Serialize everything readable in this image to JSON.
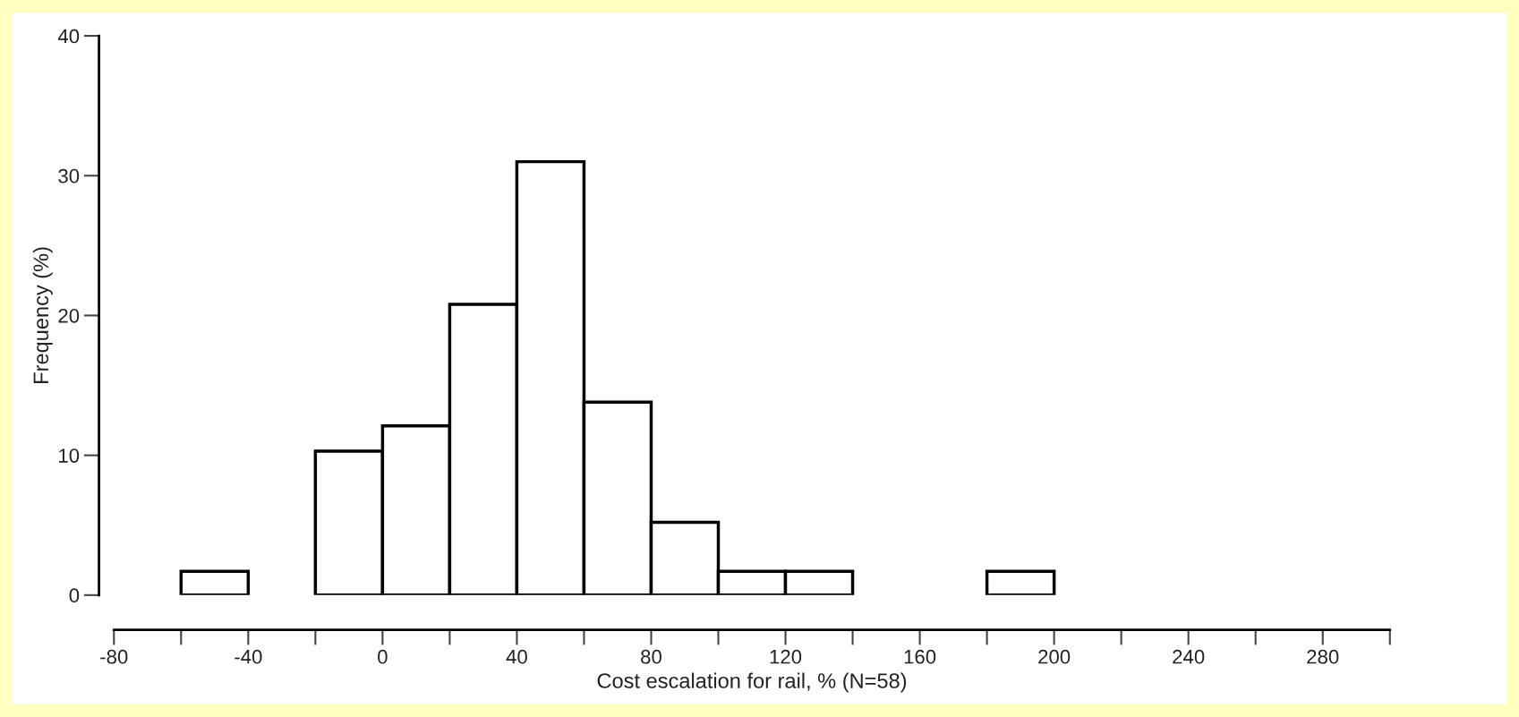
{
  "chart_data": {
    "type": "histogram",
    "xlabel": "Cost escalation for rail, % (N=58)",
    "ylabel": "Frequency (%)",
    "bins": [
      -60,
      -40,
      -20,
      0,
      20,
      40,
      60,
      80,
      100,
      120,
      140,
      160,
      180,
      200
    ],
    "values": [
      1.7,
      0,
      10.3,
      12.1,
      20.8,
      31.0,
      13.8,
      5.2,
      1.7,
      1.7,
      0,
      0,
      1.7
    ],
    "color": "#ffffff",
    "xlim": [
      -80,
      300
    ],
    "xticks": [
      -80,
      -40,
      0,
      40,
      80,
      120,
      160,
      200,
      240,
      280
    ],
    "ylim": [
      0,
      40
    ],
    "yticks": [
      0,
      10,
      20,
      30,
      40
    ],
    "grid": false,
    "legend": false
  }
}
